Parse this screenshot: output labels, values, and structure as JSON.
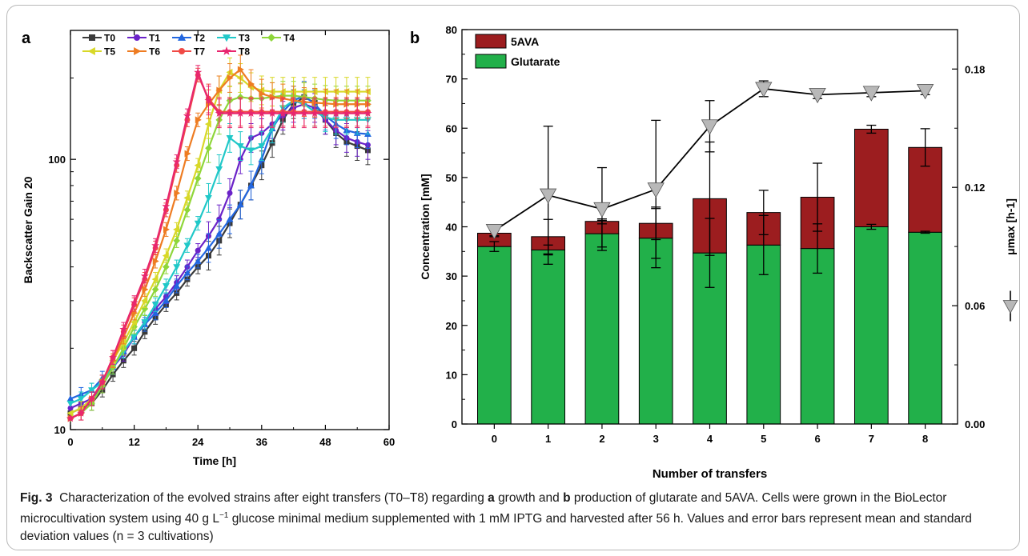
{
  "caption": {
    "fig_label": "Fig. 3",
    "part1": "Characterization of the evolved strains after eight transfers (T0–T8) regarding",
    "label_a": "a",
    "part2": "growth and",
    "label_b": "b",
    "part3": "production of glutarate and 5AVA. Cells were grown in the BioLector microcultivation system using 40 g L",
    "sup": "−1",
    "part4": "glucose minimal medium supplemented with 1 mM IPTG and harvested after 56 h. Values and error bars represent mean and standard deviation values (n = 3 cultivations)"
  },
  "chart_data": [
    {
      "panel": "a",
      "type": "line",
      "xlabel": "Time [h]",
      "ylabel": "Backscatter Gain 20",
      "xlim": [
        0,
        60
      ],
      "ylim": [
        10,
        300
      ],
      "yscale": "log",
      "xticks": [
        "0",
        "12",
        "24",
        "36",
        "48",
        "60"
      ],
      "yticks": [
        "10",
        "100"
      ],
      "legend_position": "top",
      "x": [
        0,
        2,
        4,
        6,
        8,
        10,
        12,
        14,
        16,
        18,
        20,
        22,
        24,
        26,
        28,
        30,
        32,
        34,
        36,
        38,
        40,
        42,
        44,
        46,
        48,
        50,
        52,
        54,
        56
      ],
      "series": [
        {
          "name": "T0",
          "color": "#3a3a3a",
          "marker": "square",
          "values": [
            11.5,
            12,
            12.5,
            14,
            16,
            18,
            20,
            23,
            26,
            29,
            32,
            36,
            40,
            44,
            50,
            58,
            68,
            80,
            95,
            115,
            140,
            160,
            170,
            162,
            140,
            125,
            116,
            112,
            108
          ]
        },
        {
          "name": "T1",
          "color": "#6a22c8",
          "marker": "circle",
          "values": [
            12,
            12.5,
            13,
            14.5,
            17,
            19,
            22,
            25,
            28,
            31,
            35,
            40,
            46,
            52,
            60,
            75,
            100,
            120,
            125,
            135,
            145,
            155,
            160,
            155,
            140,
            128,
            120,
            116,
            113
          ]
        },
        {
          "name": "T2",
          "color": "#2266e0",
          "marker": "triangle",
          "values": [
            13,
            13.5,
            14,
            15.5,
            17,
            19.5,
            22,
            24.5,
            27,
            30,
            34,
            38,
            42,
            47,
            53,
            60,
            68,
            80,
            100,
            130,
            150,
            165,
            172,
            160,
            145,
            135,
            128,
            125,
            124
          ]
        },
        {
          "name": "T3",
          "color": "#20c8c8",
          "marker": "triangle-down",
          "values": [
            12.5,
            13,
            14,
            15,
            17,
            19.5,
            22,
            25,
            29,
            34,
            40,
            48,
            58,
            72,
            92,
            120,
            112,
            108,
            112,
            130,
            155,
            165,
            160,
            150,
            143,
            140,
            140,
            140,
            140
          ]
        },
        {
          "name": "T4",
          "color": "#8ed63a",
          "marker": "diamond",
          "values": [
            11,
            11.5,
            12.5,
            14.5,
            17,
            20,
            24,
            28,
            33,
            40,
            50,
            65,
            85,
            110,
            140,
            165,
            170,
            168,
            168,
            170,
            172,
            172,
            170,
            168,
            166,
            165,
            165,
            165,
            165
          ]
        },
        {
          "name": "T5",
          "color": "#d8d828",
          "marker": "triangle-left",
          "values": [
            11.5,
            12,
            13,
            15,
            18,
            21,
            25,
            30,
            36,
            44,
            55,
            72,
            95,
            135,
            180,
            210,
            200,
            185,
            180,
            178,
            178,
            178,
            178,
            178,
            178,
            178,
            178,
            178,
            178
          ]
        },
        {
          "name": "T6",
          "color": "#ee7c22",
          "marker": "triangle-right",
          "values": [
            11,
            11.5,
            13,
            15,
            18,
            22,
            27,
            33,
            42,
            55,
            75,
            105,
            140,
            160,
            180,
            200,
            215,
            190,
            175,
            170,
            168,
            165,
            163,
            162,
            161,
            160,
            160,
            160,
            160
          ]
        },
        {
          "name": "T7",
          "color": "#f04a46",
          "marker": "circle",
          "values": [
            11,
            11.5,
            13,
            15,
            18.5,
            23,
            29,
            36,
            47,
            65,
            95,
            140,
            205,
            168,
            150,
            150,
            150,
            150,
            150,
            150,
            150,
            150,
            150,
            150,
            150,
            150,
            150,
            150,
            150
          ]
        },
        {
          "name": "T8",
          "color": "#e8266e",
          "marker": "star",
          "values": [
            11,
            11.5,
            13,
            15,
            18.5,
            23.5,
            29.5,
            37,
            48,
            67,
            98,
            145,
            210,
            165,
            148,
            148,
            148,
            148,
            148,
            148,
            148,
            148,
            148,
            148,
            148,
            148,
            148,
            148,
            148
          ]
        }
      ]
    },
    {
      "panel": "b",
      "type": "bar",
      "stacked": true,
      "xlabel": "Number of transfers",
      "ylabel": "Concentration [mM]",
      "y2label": "μmax [h-1]",
      "categories": [
        "0",
        "1",
        "2",
        "3",
        "4",
        "5",
        "6",
        "7",
        "8"
      ],
      "ylim": [
        0,
        80
      ],
      "yticks": [
        "0",
        "10",
        "20",
        "30",
        "40",
        "50",
        "60",
        "70",
        "80"
      ],
      "y2lim": [
        0,
        0.2
      ],
      "y2ticks": [
        "0.00",
        "0.06",
        "0.12",
        "0.18"
      ],
      "legend_position": "top-left",
      "series": [
        {
          "name": "Glutarate",
          "color": "#22b04a",
          "values": [
            36.0,
            35.3,
            38.6,
            37.7,
            34.7,
            36.3,
            35.6,
            40.0,
            38.9
          ],
          "errors": [
            1.0,
            1.0,
            2.7,
            6.0,
            7.0,
            6.0,
            5.0,
            0.5,
            0.2
          ]
        },
        {
          "name": "5AVA",
          "color": "#9c1d1f",
          "values": [
            2.7,
            2.7,
            2.5,
            3.0,
            11.0,
            6.6,
            10.4,
            19.8,
            17.2
          ],
          "errors": [
            0.5,
            3.5,
            0.5,
            3.3,
            11.5,
            4.5,
            6.9,
            0.8,
            3.8
          ]
        },
        {
          "name": "μmax",
          "type": "line",
          "axis": "y2",
          "color": "#000000",
          "marker": "triangle-down",
          "marker_color": "#b8b8b8",
          "values": [
            0.098,
            0.116,
            0.109,
            0.119,
            0.151,
            0.17,
            0.167,
            0.168,
            0.169
          ],
          "errors": [
            0.003,
            0.035,
            0.021,
            0.035,
            0.013,
            0.004,
            0.002,
            0.002,
            0.002
          ]
        }
      ]
    }
  ]
}
